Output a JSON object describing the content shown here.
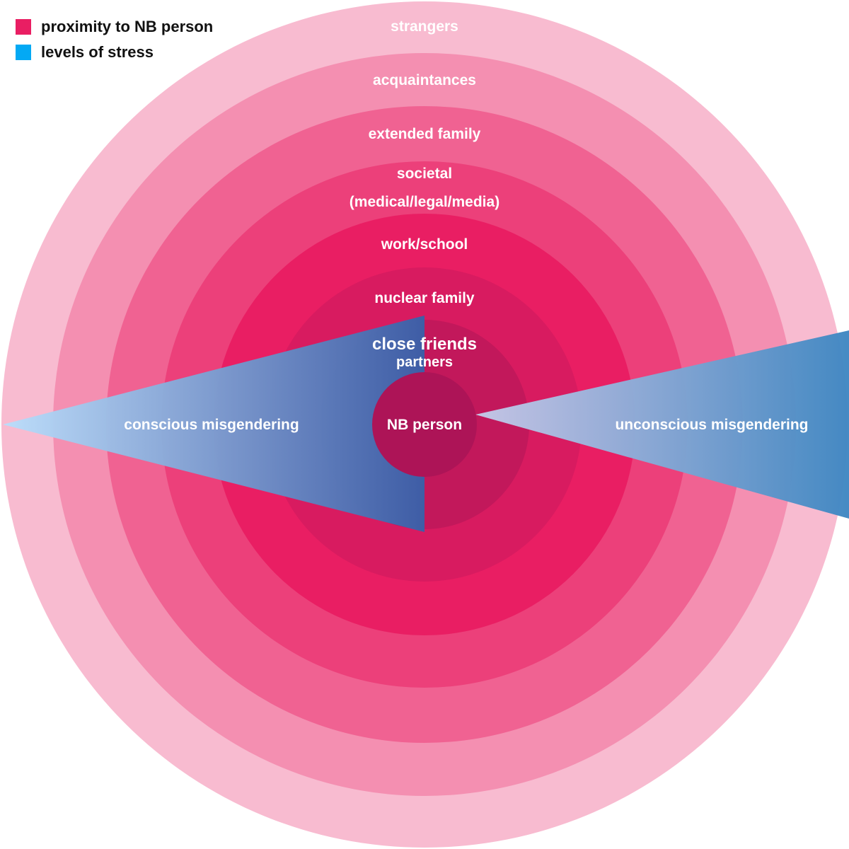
{
  "legend": {
    "items": [
      {
        "label": "proximity to NB person",
        "color": "#e91e63"
      },
      {
        "label": "levels of stress",
        "color": "#03a9f4"
      }
    ]
  },
  "center": {
    "label": "NB person",
    "color": "#ad1457"
  },
  "rings": [
    {
      "label": "strangers",
      "color": "#f8bbd0"
    },
    {
      "label": "acquaintances",
      "color": "#f48fb1"
    },
    {
      "label": "extended family",
      "color": "#f06292"
    },
    {
      "label": "societal (medical/legal/media)",
      "line1": "societal",
      "line2": "(medical/legal/media)",
      "color": "#ec407a"
    },
    {
      "label": "work/school",
      "color": "#e91e63"
    },
    {
      "label": "nuclear family",
      "color": "#d81b60"
    },
    {
      "label": "close friends partners",
      "line1": "close friends",
      "line2": "partners",
      "color": "#c2185b"
    }
  ],
  "wedges": {
    "left": {
      "label": "conscious misgendering",
      "color_light": "#bbdefb",
      "color_dark": "#3a5fa8"
    },
    "right": {
      "label": "unconscious misgendering",
      "color_light": "#c5cae9",
      "color_dark": "#3f87c2"
    }
  }
}
